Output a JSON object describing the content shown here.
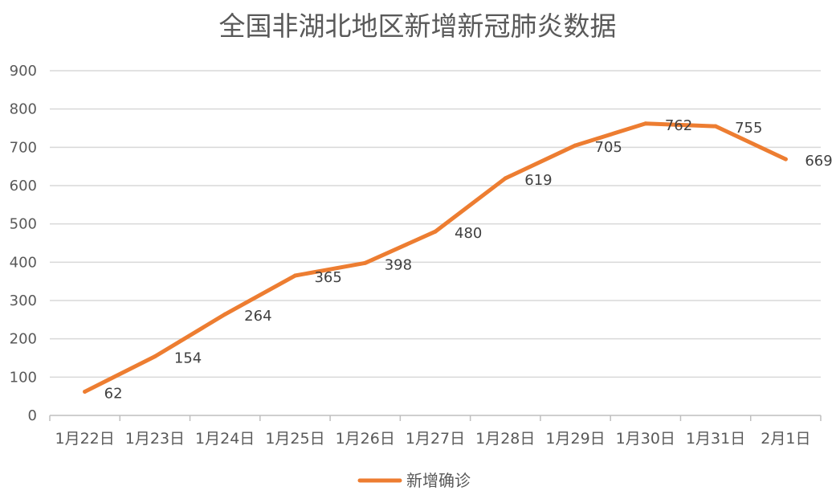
{
  "chart_data": {
    "type": "line",
    "title": "全国非湖北地区新增新冠肺炎数据",
    "xlabel": "",
    "ylabel": "",
    "categories": [
      "1月22日",
      "1月23日",
      "1月24日",
      "1月25日",
      "1月26日",
      "1月27日",
      "1月28日",
      "1月29日",
      "1月30日",
      "1月31日",
      "2月1日"
    ],
    "series": [
      {
        "name": "新增确诊",
        "values": [
          62,
          154,
          264,
          365,
          398,
          480,
          619,
          705,
          762,
          755,
          669
        ]
      }
    ],
    "ylim": [
      0,
      900
    ],
    "yticks": [
      0,
      100,
      200,
      300,
      400,
      500,
      600,
      700,
      800,
      900
    ],
    "grid": true,
    "legend": "bottom",
    "data_labels": true,
    "colors": {
      "series": "#ED7D31",
      "grid": "#D9D9D9",
      "axis": "#BFBFBF",
      "text": "#595959"
    }
  }
}
